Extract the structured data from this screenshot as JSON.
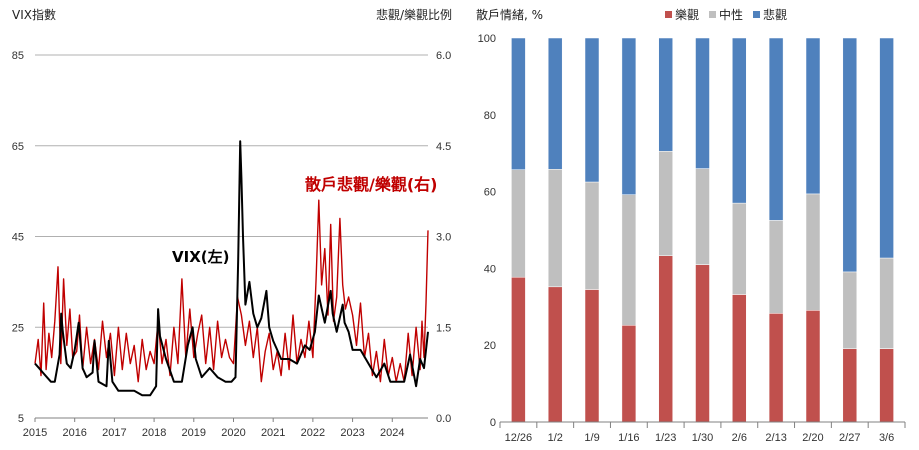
{
  "chart_data": [
    {
      "type": "line",
      "ylabel_left": "VIX指數",
      "ylabel_right": "悲觀/樂觀比例",
      "left_ticks": [
        "5",
        "25",
        "45",
        "65",
        "85"
      ],
      "right_ticks": [
        "0.0",
        "1.5",
        "3.0",
        "4.5",
        "6.0"
      ],
      "ylim_left": [
        5,
        85
      ],
      "ylim_right": [
        0,
        6
      ],
      "xlim": [
        2015,
        2024.9
      ],
      "x_ticks": [
        "2015",
        "2016",
        "2017",
        "2018",
        "2019",
        "2020",
        "2021",
        "2022",
        "2023",
        "2024"
      ],
      "grid": "horizontal",
      "annotations": [
        "VIX(左)",
        "散戶悲觀/樂觀(右)"
      ],
      "series": [
        {
          "axis": "left",
          "color": "#000000",
          "x": [
            2015.0,
            2015.1,
            2015.2,
            2015.3,
            2015.4,
            2015.5,
            2015.62,
            2015.66,
            2015.7,
            2015.8,
            2015.9,
            2016.0,
            2016.1,
            2016.2,
            2016.3,
            2016.45,
            2016.5,
            2016.6,
            2016.8,
            2016.86,
            2016.95,
            2017.1,
            2017.3,
            2017.5,
            2017.7,
            2017.9,
            2018.05,
            2018.1,
            2018.15,
            2018.3,
            2018.5,
            2018.7,
            2018.85,
            2018.97,
            2019.05,
            2019.2,
            2019.4,
            2019.6,
            2019.8,
            2019.95,
            2020.05,
            2020.12,
            2020.17,
            2020.2,
            2020.24,
            2020.3,
            2020.4,
            2020.5,
            2020.6,
            2020.7,
            2020.83,
            2020.9,
            2021.0,
            2021.1,
            2021.2,
            2021.4,
            2021.6,
            2021.8,
            2021.92,
            2022.05,
            2022.15,
            2022.2,
            2022.3,
            2022.45,
            2022.5,
            2022.6,
            2022.75,
            2022.8,
            2022.9,
            2023.0,
            2023.2,
            2023.4,
            2023.6,
            2023.8,
            2023.95,
            2024.1,
            2024.3,
            2024.45,
            2024.6,
            2024.7,
            2024.8,
            2024.9
          ],
          "y": [
            17,
            16,
            15,
            14,
            13,
            13,
            19,
            28,
            24,
            17,
            16,
            20,
            26,
            16,
            14,
            15,
            22,
            13,
            12,
            22,
            13,
            11,
            11,
            11,
            10,
            10,
            12,
            29,
            23,
            18,
            13,
            13,
            21,
            25,
            18,
            14,
            16,
            14,
            13,
            13,
            14,
            40,
            66,
            58,
            45,
            30,
            35,
            28,
            25,
            27,
            33,
            25,
            22,
            20,
            18,
            18,
            17,
            21,
            20,
            24,
            32,
            30,
            26,
            33,
            28,
            24,
            30,
            26,
            24,
            20,
            20,
            17,
            14,
            17,
            13,
            13,
            13,
            19,
            12,
            18,
            16,
            24
          ]
        },
        {
          "axis": "right",
          "color": "#c00000",
          "x": [
            2015.0,
            2015.08,
            2015.15,
            2015.22,
            2015.28,
            2015.35,
            2015.42,
            2015.5,
            2015.58,
            2015.65,
            2015.72,
            2015.8,
            2015.88,
            2015.95,
            2016.05,
            2016.12,
            2016.2,
            2016.3,
            2016.4,
            2016.5,
            2016.6,
            2016.7,
            2016.8,
            2016.9,
            2017.0,
            2017.1,
            2017.2,
            2017.3,
            2017.4,
            2017.5,
            2017.6,
            2017.7,
            2017.8,
            2017.9,
            2018.0,
            2018.1,
            2018.2,
            2018.3,
            2018.4,
            2018.5,
            2018.6,
            2018.7,
            2018.8,
            2018.9,
            2019.0,
            2019.1,
            2019.2,
            2019.3,
            2019.4,
            2019.5,
            2019.6,
            2019.7,
            2019.8,
            2019.9,
            2020.0,
            2020.1,
            2020.2,
            2020.3,
            2020.4,
            2020.5,
            2020.6,
            2020.7,
            2020.8,
            2020.9,
            2021.0,
            2021.1,
            2021.2,
            2021.3,
            2021.4,
            2021.5,
            2021.6,
            2021.7,
            2021.8,
            2021.9,
            2022.0,
            2022.08,
            2022.15,
            2022.22,
            2022.3,
            2022.38,
            2022.45,
            2022.52,
            2022.6,
            2022.68,
            2022.75,
            2022.82,
            2022.9,
            2023.0,
            2023.1,
            2023.2,
            2023.3,
            2023.4,
            2023.5,
            2023.6,
            2023.7,
            2023.8,
            2023.9,
            2024.0,
            2024.1,
            2024.2,
            2024.3,
            2024.4,
            2024.5,
            2024.6,
            2024.7,
            2024.75,
            2024.8,
            2024.85,
            2024.9
          ],
          "y": [
            0.9,
            1.3,
            0.7,
            1.9,
            0.8,
            1.4,
            1.0,
            1.6,
            2.5,
            0.9,
            2.3,
            1.2,
            1.8,
            1.0,
            1.1,
            1.7,
            0.8,
            1.5,
            0.9,
            1.3,
            0.8,
            1.6,
            1.0,
            1.4,
            0.7,
            1.5,
            0.8,
            1.4,
            0.9,
            1.2,
            0.6,
            1.3,
            0.8,
            1.1,
            0.9,
            1.6,
            0.9,
            1.3,
            0.7,
            1.5,
            0.9,
            2.3,
            1.0,
            1.8,
            1.0,
            1.4,
            1.7,
            0.9,
            1.5,
            0.8,
            1.6,
            1.0,
            1.3,
            1.0,
            0.9,
            2.0,
            1.7,
            1.2,
            1.6,
            1.0,
            1.5,
            0.6,
            1.1,
            1.4,
            0.8,
            1.1,
            0.7,
            1.4,
            0.8,
            1.7,
            0.9,
            1.3,
            1.0,
            1.6,
            1.0,
            2.3,
            3.6,
            2.2,
            2.8,
            1.7,
            3.2,
            1.6,
            2.0,
            3.3,
            2.2,
            1.8,
            2.0,
            1.7,
            1.2,
            1.9,
            1.0,
            1.4,
            0.7,
            1.1,
            0.6,
            1.3,
            0.7,
            1.0,
            0.6,
            0.9,
            0.6,
            1.4,
            0.7,
            1.5,
            0.8,
            1.6,
            1.0,
            1.9,
            3.1
          ]
        }
      ]
    },
    {
      "type": "bar",
      "stacked": true,
      "title": "散戶情緒, %",
      "categories": [
        "12/26",
        "1/2",
        "1/9",
        "1/16",
        "1/23",
        "1/30",
        "2/6",
        "2/13",
        "2/20",
        "2/27",
        "3/6"
      ],
      "ylim": [
        0,
        100
      ],
      "y_ticks": [
        "0",
        "20",
        "40",
        "60",
        "80",
        "100"
      ],
      "legend_position": "top",
      "series": [
        {
          "name": "樂觀",
          "color": "#c0504d",
          "values": [
            37.7,
            35.2,
            34.5,
            25.2,
            43.3,
            41.0,
            33.2,
            28.3,
            29.1,
            19.1,
            19.1
          ]
        },
        {
          "name": "中性",
          "color": "#bfbfbf",
          "values": [
            28.0,
            30.6,
            28.0,
            34.0,
            27.2,
            25.0,
            23.8,
            24.2,
            30.3,
            20.0,
            23.6
          ]
        },
        {
          "name": "悲觀",
          "color": "#4f81bd",
          "values": [
            34.3,
            34.2,
            37.5,
            40.8,
            29.5,
            34.0,
            43.0,
            47.5,
            40.6,
            60.9,
            57.3
          ]
        }
      ]
    }
  ]
}
